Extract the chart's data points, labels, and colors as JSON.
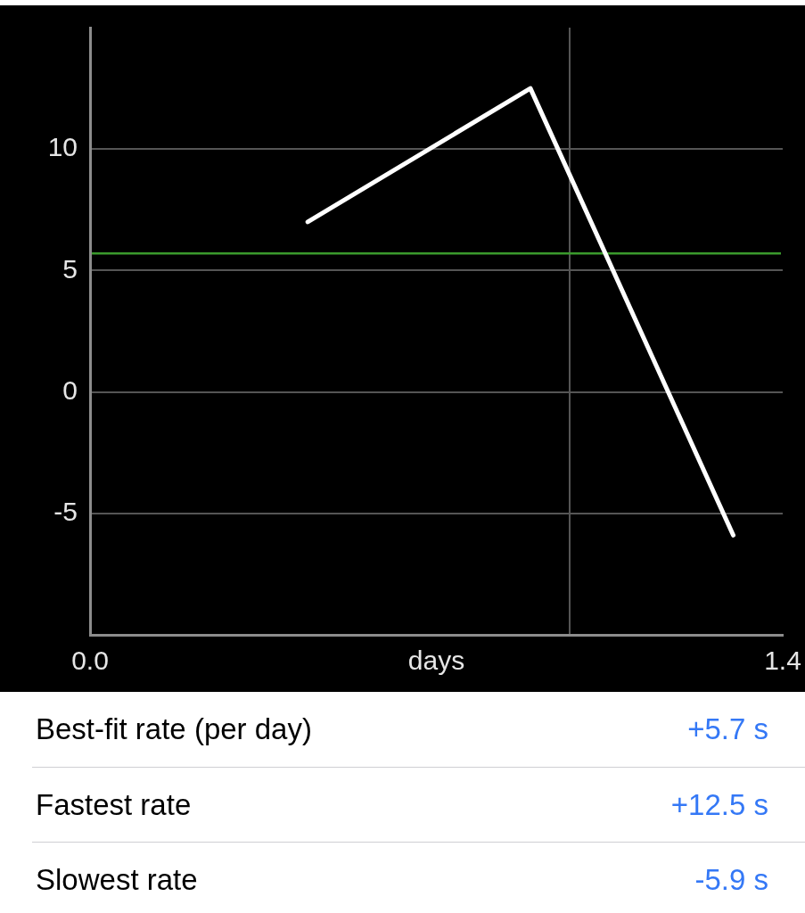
{
  "chart_data": {
    "type": "line",
    "xlabel": "days",
    "x": [
      0.44,
      0.89,
      1.3
    ],
    "series": [
      {
        "color": "#ffffff",
        "values": [
          7.0,
          12.5,
          -5.9
        ]
      }
    ],
    "xlim": [
      0,
      1.4
    ],
    "xticks": [
      {
        "value": 0,
        "label": "0.0"
      },
      {
        "value": 0.97,
        "label": null
      },
      {
        "value": 1.4,
        "label": "1.4"
      }
    ],
    "ylim": [
      -10,
      15
    ],
    "yticks": [
      -5,
      0,
      5,
      10
    ],
    "grid": true,
    "ref_lines": [
      {
        "axis": "y",
        "value": 5.7,
        "color": "#3a9a2c"
      }
    ],
    "annotations": [
      "Best-fit rate (per day)",
      "+5.7 s",
      "Fastest rate",
      "+12.5 s",
      "Slowest rate",
      "-5.9 s"
    ]
  }
}
